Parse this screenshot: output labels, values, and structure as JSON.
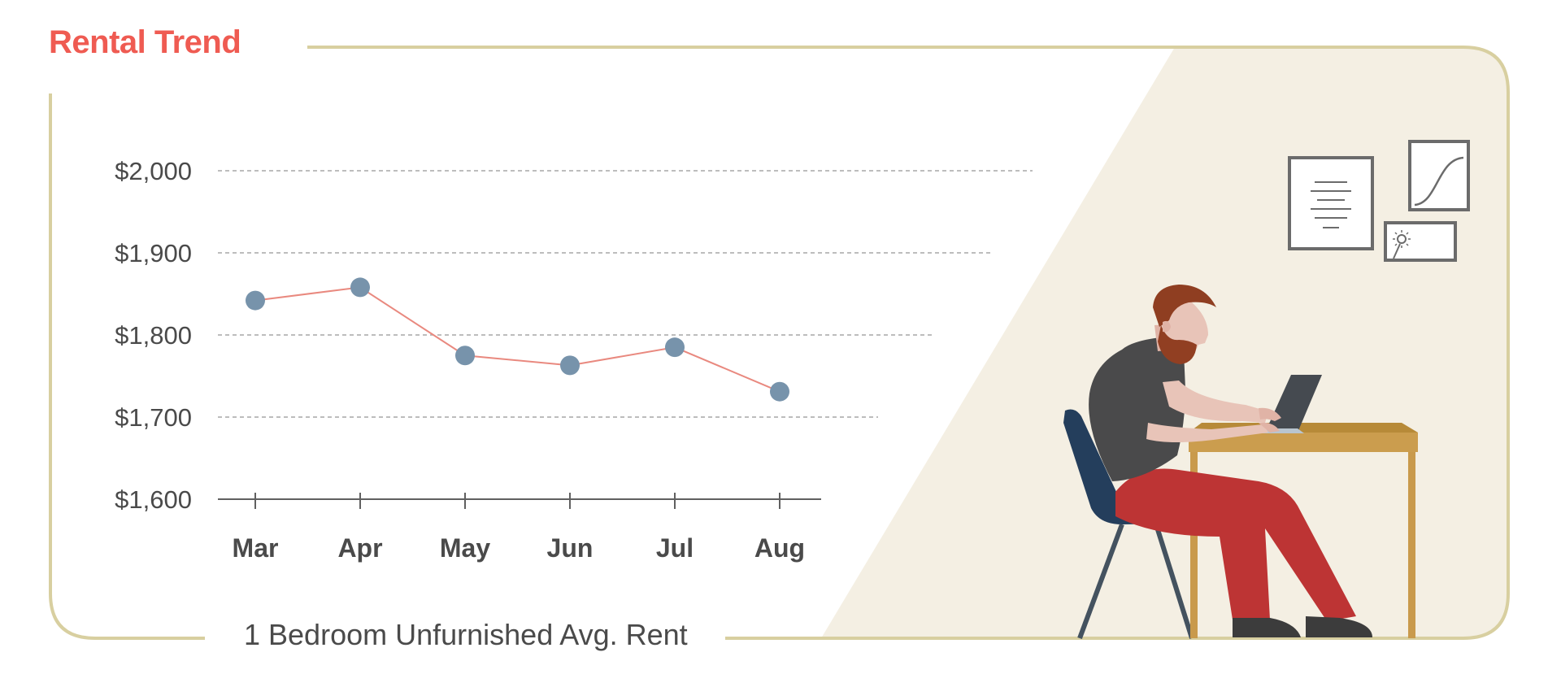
{
  "colors": {
    "accent": "#ef5b52",
    "frame": "#d8cfa0",
    "panel": "#f4efe3",
    "marker": "#7793ab",
    "series_line": "#e9897f",
    "grid": "#a7a7a7",
    "axis": "#606060",
    "text": "#4a4a4a"
  },
  "header": {
    "title": "Rental Trend"
  },
  "chart_data": {
    "type": "line",
    "categories": [
      "Mar",
      "Apr",
      "May",
      "Jun",
      "Jul",
      "Aug"
    ],
    "series": [
      {
        "values": [
          1842,
          1858,
          1775,
          1763,
          1785,
          1731
        ]
      }
    ],
    "y_ticks": [
      "$1,600",
      "$1,700",
      "$1,800",
      "$1,900",
      "$2,000"
    ],
    "ylim": [
      1600,
      2000
    ],
    "grid": true,
    "xlabel": "1 Bedroom Unfurnished Avg. Rent",
    "ylabel": ""
  },
  "illustration": {
    "subject": "person working on laptop at desk",
    "icons": [
      "document-frame-icon",
      "growth-curve-frame-icon",
      "sun-frame-icon"
    ]
  }
}
